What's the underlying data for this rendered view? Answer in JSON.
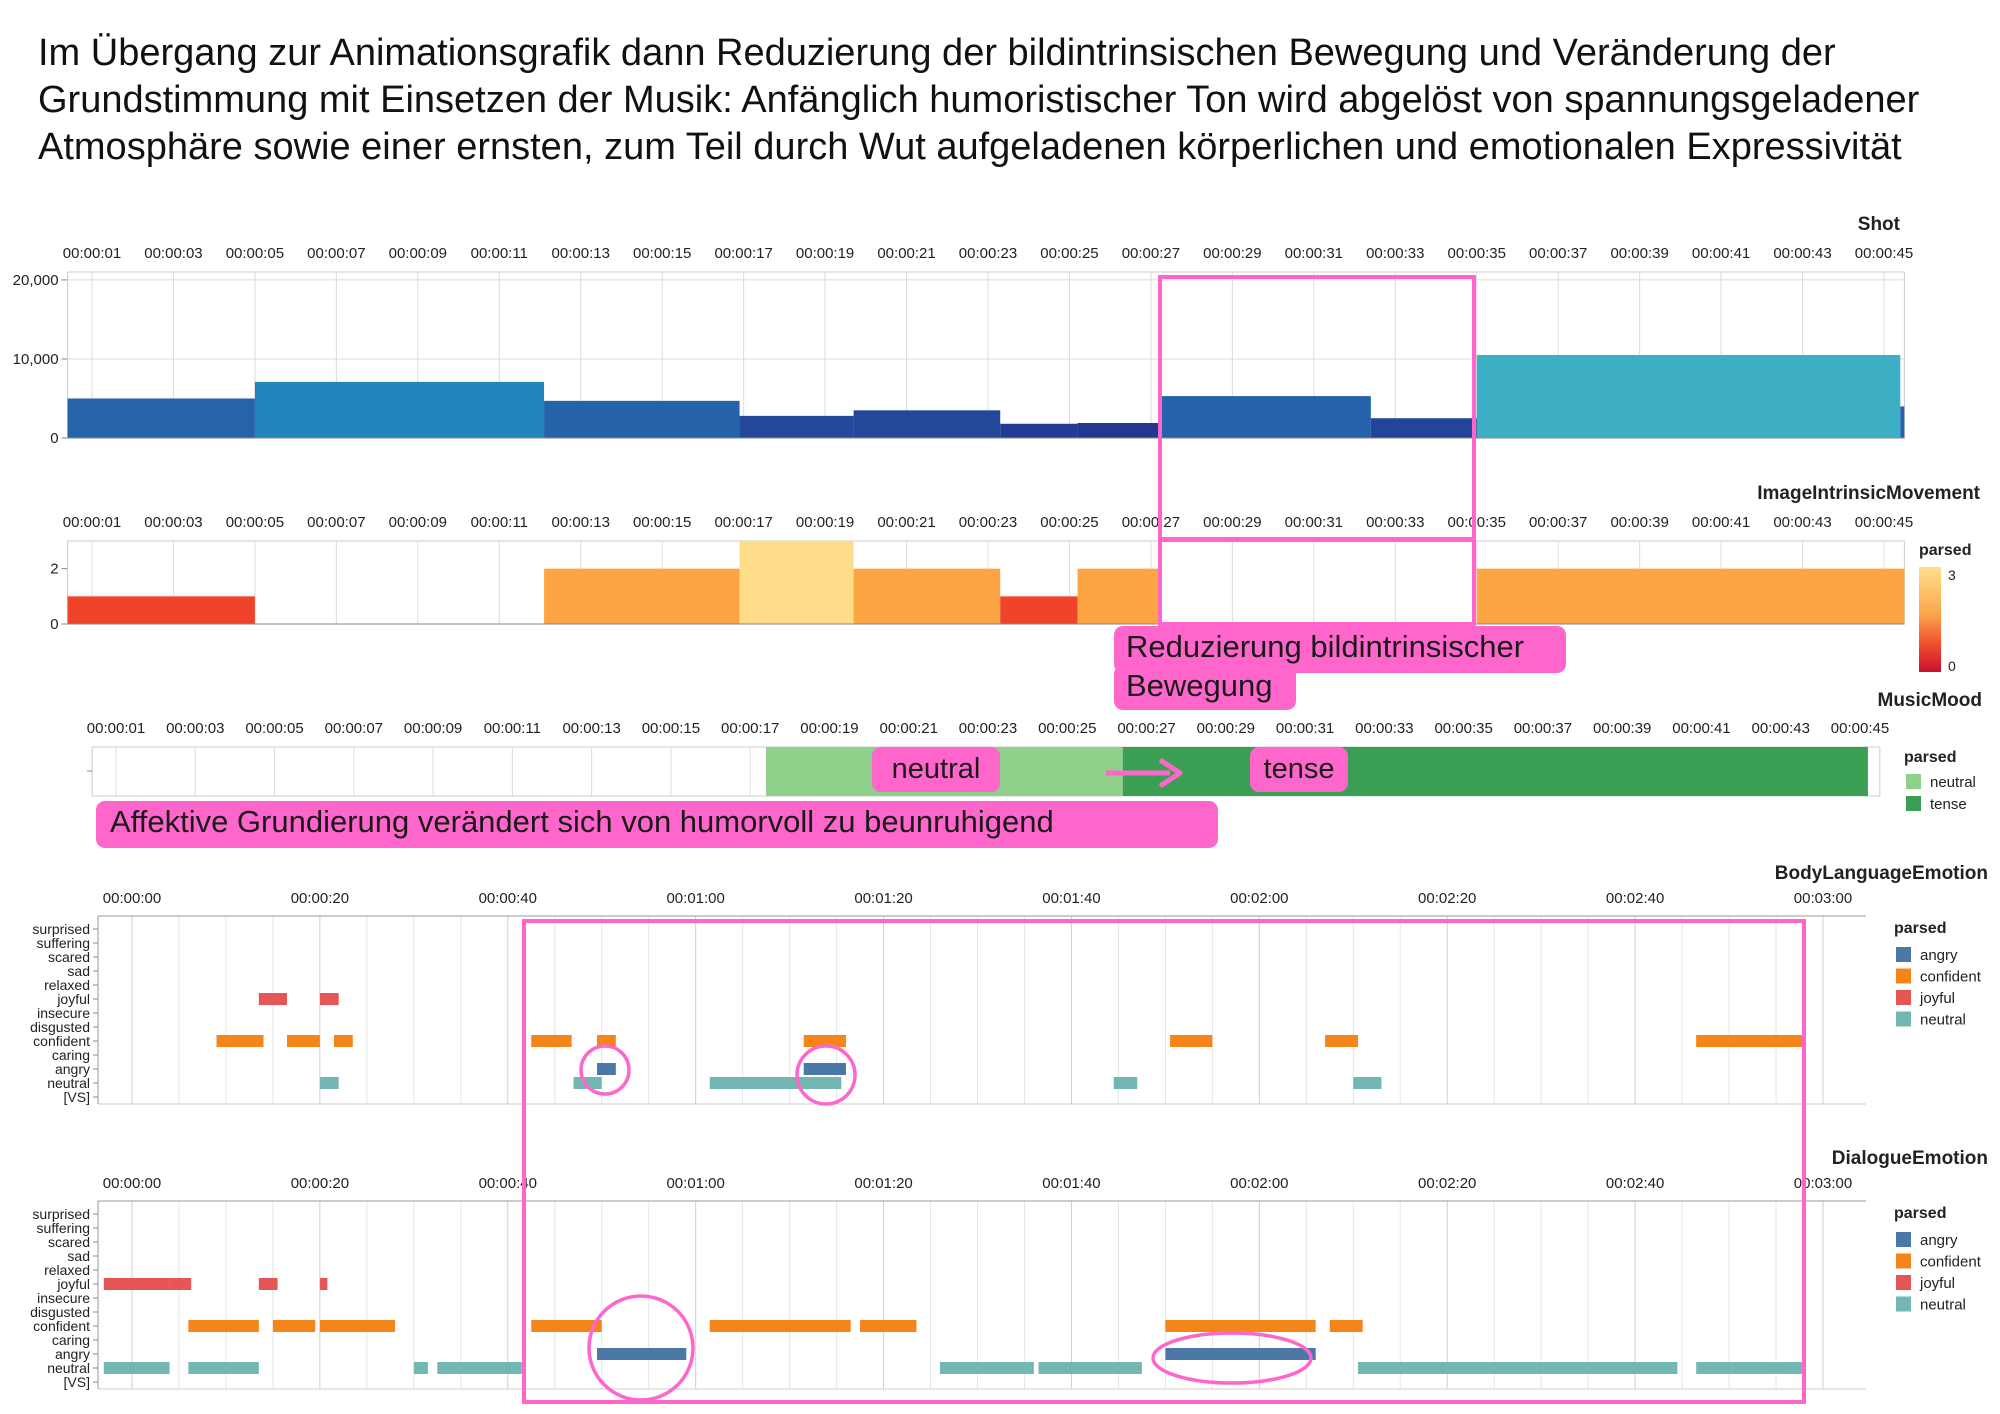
{
  "headline": "Im Übergang zur Animationsgrafik dann Reduzierung der bildintrinsischen Bewegung und Veränderung der Grundstimmung mit Einsetzen der Musik: Anfänglich humoristischer Ton wird abgelöst von spannungsgeladener Atmosphäre sowie einer ernsten, zum Teil durch Wut aufgeladenen körperlichen und emotionalen Expressivität",
  "time_ticks_short": [
    "00:00:01",
    "00:00:03",
    "00:00:05",
    "00:00:07",
    "00:00:09",
    "00:00:11",
    "00:00:13",
    "00:00:15",
    "00:00:17",
    "00:00:19",
    "00:00:21",
    "00:00:23",
    "00:00:25",
    "00:00:27",
    "00:00:29",
    "00:00:31",
    "00:00:33",
    "00:00:35",
    "00:00:37",
    "00:00:39",
    "00:00:41",
    "00:00:43",
    "00:00:45"
  ],
  "time_ticks_long": [
    "00:00:00",
    "00:00:20",
    "00:00:40",
    "00:01:00",
    "00:01:20",
    "00:01:40",
    "00:02:00",
    "00:02:20",
    "00:02:40",
    "00:03:00"
  ],
  "emotion_categories": [
    "surprised",
    "suffering",
    "scared",
    "sad",
    "relaxed",
    "joyful",
    "insecure",
    "disgusted",
    "confident",
    "caring",
    "angry",
    "neutral",
    "[VS]"
  ],
  "colors": {
    "angry": "#4c78a8",
    "confident": "#f58518",
    "joyful": "#e45756",
    "neutral": "#72b7b2",
    "music_neutral": "#8fd08a",
    "music_tense": "#3a9f53",
    "annotation": "#ff66cc"
  },
  "chart_data": [
    {
      "type": "bar",
      "title": "Shot",
      "x_unit": "seconds",
      "xlim": [
        0.4,
        45.5
      ],
      "ylim": [
        0,
        21000
      ],
      "yticks": [
        0,
        10000,
        20000
      ],
      "ytick_labels": [
        "0",
        "10,000",
        "20,000"
      ],
      "bars": [
        {
          "start": 0.4,
          "end": 5.0,
          "value": 5000,
          "color": "#2563ab"
        },
        {
          "start": 5.0,
          "end": 12.1,
          "value": 7100,
          "color": "#2383bb"
        },
        {
          "start": 12.1,
          "end": 16.9,
          "value": 4700,
          "color": "#2462aa"
        },
        {
          "start": 16.9,
          "end": 19.7,
          "value": 2800,
          "color": "#23479b"
        },
        {
          "start": 19.7,
          "end": 23.3,
          "value": 3500,
          "color": "#23479b"
        },
        {
          "start": 23.3,
          "end": 25.2,
          "value": 1800,
          "color": "#233b94"
        },
        {
          "start": 25.2,
          "end": 27.2,
          "value": 1900,
          "color": "#22378f"
        },
        {
          "start": 27.2,
          "end": 32.4,
          "value": 5300,
          "color": "#2562ab"
        },
        {
          "start": 32.4,
          "end": 35.0,
          "value": 2500,
          "color": "#23449b"
        },
        {
          "start": 35.0,
          "end": 45.4,
          "value": 10500,
          "color": "#3dafc4"
        },
        {
          "start": 45.4,
          "end": 45.5,
          "value": 4000,
          "color": "#2562ab"
        }
      ]
    },
    {
      "type": "bar",
      "title": "ImageIntrinsicMovement",
      "x_unit": "seconds",
      "xlim": [
        0.4,
        45.5
      ],
      "ylim": [
        0,
        3
      ],
      "yticks": [
        0,
        2
      ],
      "ytick_labels": [
        "0",
        "2"
      ],
      "legend": {
        "title": "parsed",
        "min_label": "0",
        "max_label": "3"
      },
      "bars": [
        {
          "start": 0.4,
          "end": 5.0,
          "value": 1
        },
        {
          "start": 12.1,
          "end": 16.9,
          "value": 2
        },
        {
          "start": 16.9,
          "end": 19.7,
          "value": 3
        },
        {
          "start": 19.7,
          "end": 23.3,
          "value": 2
        },
        {
          "start": 23.3,
          "end": 25.2,
          "value": 1
        },
        {
          "start": 25.2,
          "end": 27.2,
          "value": 2
        },
        {
          "start": 35.0,
          "end": 45.5,
          "value": 2
        }
      ]
    },
    {
      "type": "bar",
      "title": "MusicMood",
      "x_unit": "seconds",
      "xlim": [
        0.4,
        45.5
      ],
      "legend": {
        "title": "parsed",
        "items": [
          "neutral",
          "tense"
        ]
      },
      "segments": [
        {
          "start": 17.4,
          "end": 26.4,
          "mood": "neutral"
        },
        {
          "start": 26.4,
          "end": 45.2,
          "mood": "tense"
        }
      ]
    },
    {
      "type": "bar",
      "title": "BodyLanguageEmotion",
      "x_unit": "seconds",
      "xlim": [
        -3,
        186
      ],
      "legend": {
        "title": "parsed",
        "items": [
          "angry",
          "confident",
          "joyful",
          "neutral"
        ]
      },
      "segments": [
        {
          "label": "joyful",
          "start": 13.5,
          "end": 16.5
        },
        {
          "label": "joyful",
          "start": 20.0,
          "end": 22.0
        },
        {
          "label": "confident",
          "start": 9.0,
          "end": 14.0
        },
        {
          "label": "confident",
          "start": 16.5,
          "end": 20.0
        },
        {
          "label": "confident",
          "start": 21.5,
          "end": 23.5
        },
        {
          "label": "neutral",
          "start": 20.0,
          "end": 22.0
        },
        {
          "label": "confident",
          "start": 42.5,
          "end": 46.8
        },
        {
          "label": "confident",
          "start": 49.5,
          "end": 51.5
        },
        {
          "label": "angry",
          "start": 49.5,
          "end": 51.5
        },
        {
          "label": "neutral",
          "start": 47.0,
          "end": 50.0
        },
        {
          "label": "confident",
          "start": 71.5,
          "end": 76.0
        },
        {
          "label": "angry",
          "start": 71.5,
          "end": 76.0
        },
        {
          "label": "neutral",
          "start": 61.5,
          "end": 70.0
        },
        {
          "label": "neutral",
          "start": 70.0,
          "end": 75.5
        },
        {
          "label": "neutral",
          "start": 104.5,
          "end": 107.0
        },
        {
          "label": "confident",
          "start": 110.5,
          "end": 115.0
        },
        {
          "label": "confident",
          "start": 127.0,
          "end": 130.5
        },
        {
          "label": "neutral",
          "start": 130.0,
          "end": 133.0
        },
        {
          "label": "confident",
          "start": 166.5,
          "end": 178.0
        }
      ]
    },
    {
      "type": "bar",
      "title": "DialogueEmotion",
      "x_unit": "seconds",
      "xlim": [
        -3,
        186
      ],
      "legend": {
        "title": "parsed",
        "items": [
          "angry",
          "confident",
          "joyful",
          "neutral"
        ]
      },
      "segments": [
        {
          "label": "joyful",
          "start": -3.0,
          "end": 4.0
        },
        {
          "label": "joyful",
          "start": 4.0,
          "end": 6.3
        },
        {
          "label": "joyful",
          "start": 13.5,
          "end": 15.5
        },
        {
          "label": "joyful",
          "start": 20.0,
          "end": 20.8
        },
        {
          "label": "confident",
          "start": 6.0,
          "end": 13.5
        },
        {
          "label": "confident",
          "start": 15.0,
          "end": 19.5
        },
        {
          "label": "confident",
          "start": 20.0,
          "end": 28.0
        },
        {
          "label": "confident",
          "start": 42.5,
          "end": 50.0
        },
        {
          "label": "confident",
          "start": 61.5,
          "end": 76.5
        },
        {
          "label": "confident",
          "start": 77.5,
          "end": 83.5
        },
        {
          "label": "confident",
          "start": 110.0,
          "end": 126.0
        },
        {
          "label": "confident",
          "start": 127.5,
          "end": 131.0
        },
        {
          "label": "angry",
          "start": 49.5,
          "end": 59.0
        },
        {
          "label": "angry",
          "start": 110.0,
          "end": 126.0
        },
        {
          "label": "neutral",
          "start": -3.0,
          "end": 4.0
        },
        {
          "label": "neutral",
          "start": 6.0,
          "end": 13.5
        },
        {
          "label": "neutral",
          "start": 30.0,
          "end": 31.5
        },
        {
          "label": "neutral",
          "start": 32.5,
          "end": 41.5
        },
        {
          "label": "neutral",
          "start": 86.0,
          "end": 96.0
        },
        {
          "label": "neutral",
          "start": 96.5,
          "end": 107.5
        },
        {
          "label": "neutral",
          "start": 130.5,
          "end": 164.5
        },
        {
          "label": "neutral",
          "start": 166.5,
          "end": 178.0
        }
      ]
    }
  ],
  "annotations": {
    "movement_note": [
      "Reduzierung bildintrinsischer",
      "Bewegung"
    ],
    "music_neutral": "neutral",
    "music_tense": "tense",
    "mood_note": "Affektive Grundierung verändert sich von humorvoll zu beunruhigend"
  }
}
